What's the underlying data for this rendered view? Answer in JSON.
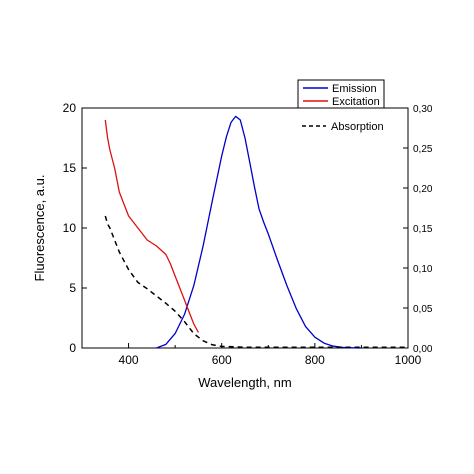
{
  "chart_data": {
    "type": "line",
    "xlabel": "Wavelength, nm",
    "ylabel": "Fluorescence, a.u.",
    "xlim": [
      300,
      1000
    ],
    "ylim_left": [
      0,
      20
    ],
    "ylim_right": [
      0,
      0.3
    ],
    "x_ticks": [
      {
        "value": 400,
        "label": "400"
      },
      {
        "value": 600,
        "label": "600"
      },
      {
        "value": 800,
        "label": "800"
      },
      {
        "value": 1000,
        "label": "1000"
      }
    ],
    "y_left_ticks": [
      {
        "value": 0,
        "label": "0"
      },
      {
        "value": 5,
        "label": "5"
      },
      {
        "value": 10,
        "label": "10"
      },
      {
        "value": 15,
        "label": "15"
      },
      {
        "value": 20,
        "label": "20"
      }
    ],
    "y_right_ticks": [
      {
        "value": 0.0,
        "label": "0,00"
      },
      {
        "value": 0.05,
        "label": "0,05"
      },
      {
        "value": 0.1,
        "label": "0,10"
      },
      {
        "value": 0.15,
        "label": "0,15"
      },
      {
        "value": 0.2,
        "label": "0,20"
      },
      {
        "value": 0.25,
        "label": "0,25"
      },
      {
        "value": 0.3,
        "label": "0,30"
      }
    ],
    "grid": false,
    "legend_placement": "top-right",
    "series": [
      {
        "name": "Emission",
        "axis": "left",
        "color": "#0000cc",
        "style": "solid",
        "x": [
          460,
          480,
          500,
          520,
          540,
          560,
          580,
          600,
          610,
          620,
          630,
          640,
          650,
          660,
          670,
          680,
          690,
          700,
          720,
          740,
          760,
          780,
          800,
          820,
          840,
          860,
          880,
          900
        ],
        "y": [
          0,
          0.3,
          1.2,
          2.8,
          5.2,
          8.5,
          12.3,
          16.0,
          17.6,
          18.8,
          19.3,
          19.0,
          17.5,
          15.5,
          13.5,
          11.6,
          10.5,
          9.5,
          7.3,
          5.2,
          3.3,
          1.8,
          0.9,
          0.4,
          0.15,
          0.05,
          0.02,
          0
        ]
      },
      {
        "name": "Excitation",
        "axis": "left",
        "color": "#dd1111",
        "style": "solid",
        "x": [
          350,
          355,
          360,
          370,
          380,
          390,
          400,
          420,
          440,
          460,
          480,
          490,
          500,
          510,
          520,
          530,
          540,
          550
        ],
        "y": [
          19.0,
          17.5,
          16.5,
          15.0,
          13.0,
          12.0,
          11.0,
          10.0,
          9.0,
          8.5,
          7.8,
          7.0,
          6.0,
          5.0,
          4.0,
          3.0,
          2.0,
          1.3
        ]
      },
      {
        "name": "Absorption",
        "axis": "right",
        "color": "#000000",
        "style": "dashed",
        "x": [
          350,
          355,
          360,
          370,
          380,
          400,
          420,
          440,
          460,
          480,
          500,
          520,
          540,
          560,
          580,
          600,
          650,
          700,
          800,
          900,
          1000
        ],
        "y": [
          0.165,
          0.155,
          0.15,
          0.135,
          0.12,
          0.098,
          0.082,
          0.074,
          0.065,
          0.056,
          0.046,
          0.033,
          0.018,
          0.009,
          0.004,
          0.002,
          0.001,
          0.001,
          0.001,
          0.001,
          0.001
        ]
      }
    ]
  }
}
